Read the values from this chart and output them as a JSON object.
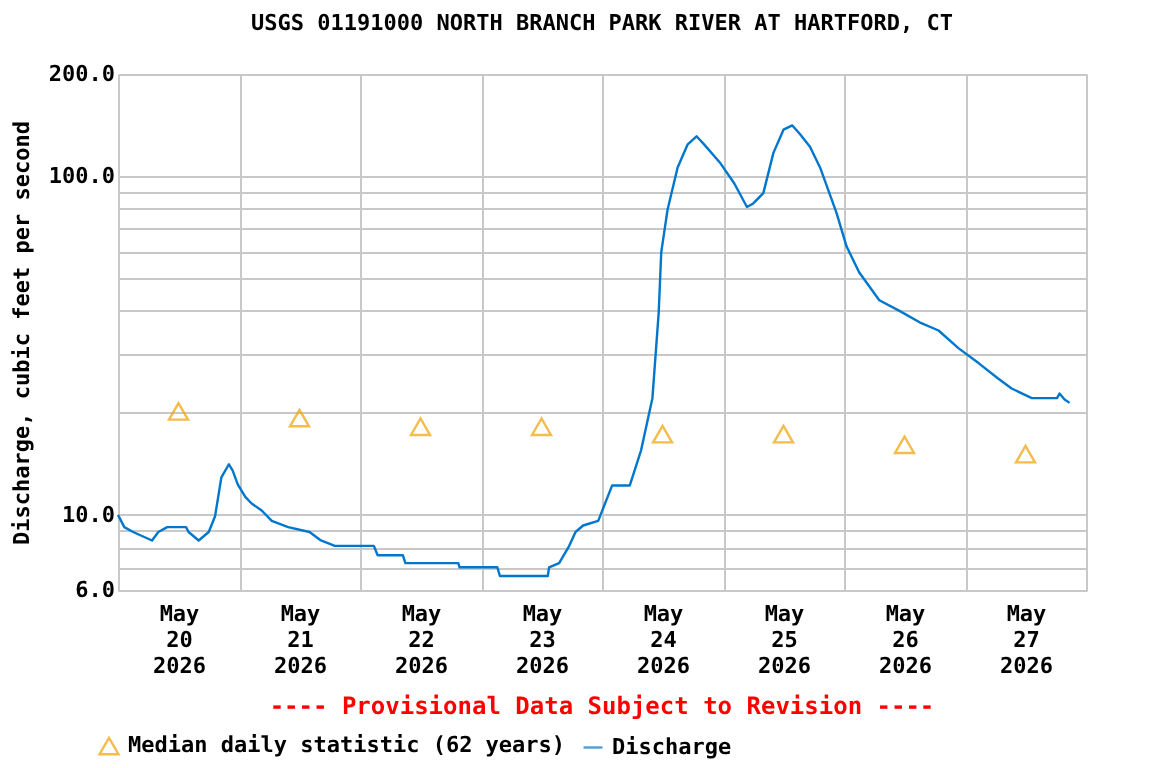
{
  "chart_data": {
    "type": "line",
    "title": "USGS 01191000 NORTH BRANCH PARK RIVER AT HARTFORD, CT",
    "ylabel": "Discharge, cubic feet per second",
    "annotations": [
      "---- Provisional Data Subject to Revision ----"
    ],
    "log": "y",
    "grid": true,
    "legend": "bottom",
    "xlim": [
      "2026-05-20T00:00",
      "2026-05-28T00:00"
    ],
    "xticks": [
      {
        "value": "2026-05-20T12:00",
        "label": "May 20 2026"
      },
      {
        "value": "2026-05-21T12:00",
        "label": "May 21 2026"
      },
      {
        "value": "2026-05-22T12:00",
        "label": "May 22 2026"
      },
      {
        "value": "2026-05-23T12:00",
        "label": "May 23 2026"
      },
      {
        "value": "2026-05-24T12:00",
        "label": "May 24 2026"
      },
      {
        "value": "2026-05-25T12:00",
        "label": "May 25 2026"
      },
      {
        "value": "2026-05-26T12:00",
        "label": "May 26 2026"
      },
      {
        "value": "2026-05-27T12:00",
        "label": "May 27 2026"
      },
      {
        "value": "2026-05-21T00:00",
        "label": null
      },
      {
        "value": "2026-05-22T00:00",
        "label": null
      },
      {
        "value": "2026-05-23T00:00",
        "label": null
      },
      {
        "value": "2026-05-24T00:00",
        "label": null
      },
      {
        "value": "2026-05-25T00:00",
        "label": null
      },
      {
        "value": "2026-05-26T00:00",
        "label": null
      },
      {
        "value": "2026-05-27T00:00",
        "label": null
      }
    ],
    "ylim": [
      6,
      200
    ],
    "yticks": [
      {
        "value": 6,
        "label": "6.0"
      },
      {
        "value": 7,
        "label": null
      },
      {
        "value": 8,
        "label": null
      },
      {
        "value": 9,
        "label": null
      },
      {
        "value": 10,
        "label": "10.0"
      },
      {
        "value": 20,
        "label": null
      },
      {
        "value": 30,
        "label": null
      },
      {
        "value": 40,
        "label": null
      },
      {
        "value": 50,
        "label": null
      },
      {
        "value": 60,
        "label": null
      },
      {
        "value": 70,
        "label": null
      },
      {
        "value": 80,
        "label": null
      },
      {
        "value": 90,
        "label": null
      },
      {
        "value": 100,
        "label": "100.0"
      },
      {
        "value": 200,
        "label": "200.0"
      }
    ],
    "series": [
      {
        "name": "Median daily statistic (62 years)",
        "type": "scatter",
        "marker": "triangle",
        "color": "#f0a000",
        "x": [
          "2026-05-20T12:00",
          "2026-05-21T12:00",
          "2026-05-22T12:00",
          "2026-05-23T12:00",
          "2026-05-24T12:00",
          "2026-05-25T12:00",
          "2026-05-26T12:00",
          "2026-05-27T12:00"
        ],
        "values": [
          20.2,
          19.3,
          18.2,
          18.2,
          17.3,
          17.3,
          16.1,
          15.1
        ]
      },
      {
        "name": "Discharge",
        "type": "line",
        "marker": "none",
        "line_style": "solid",
        "color": "#0077cc",
        "x": [
          "2026-05-20T00:00",
          "2026-05-20T01:15",
          "2026-05-20T03:00",
          "2026-05-20T06:45",
          "2026-05-20T08:00",
          "2026-05-20T09:45",
          "2026-05-20T13:30",
          "2026-05-20T14:00",
          "2026-05-20T16:00",
          "2026-05-20T18:00",
          "2026-05-20T19:15",
          "2026-05-20T20:30",
          "2026-05-20T22:00",
          "2026-05-20T22:45",
          "2026-05-20T23:45",
          "2026-05-21T01:15",
          "2026-05-21T02:30",
          "2026-05-21T04:30",
          "2026-05-21T06:30",
          "2026-05-21T09:45",
          "2026-05-21T14:00",
          "2026-05-21T16:15",
          "2026-05-21T19:00",
          "2026-05-22T02:45",
          "2026-05-22T03:30",
          "2026-05-22T08:30",
          "2026-05-22T09:00",
          "2026-05-22T19:30",
          "2026-05-22T19:45",
          "2026-05-23T03:15",
          "2026-05-23T03:45",
          "2026-05-23T13:15",
          "2026-05-23T13:30",
          "2026-05-23T15:30",
          "2026-05-23T17:30",
          "2026-05-23T18:45",
          "2026-05-23T20:15",
          "2026-05-23T23:15",
          "2026-05-24T02:00",
          "2026-05-24T05:30",
          "2026-05-24T07:45",
          "2026-05-24T10:00",
          "2026-05-24T11:15",
          "2026-05-24T11:45",
          "2026-05-24T13:00",
          "2026-05-24T15:00",
          "2026-05-24T17:00",
          "2026-05-24T18:45",
          "2026-05-24T20:15",
          "2026-05-24T23:30",
          "2026-05-25T02:15",
          "2026-05-25T04:45",
          "2026-05-25T06:00",
          "2026-05-25T08:00",
          "2026-05-25T10:00",
          "2026-05-25T12:00",
          "2026-05-25T13:45",
          "2026-05-25T15:15",
          "2026-05-25T17:15",
          "2026-05-25T19:15",
          "2026-05-25T22:30",
          "2026-05-26T00:30",
          "2026-05-26T03:00",
          "2026-05-26T07:00",
          "2026-05-26T11:00",
          "2026-05-26T15:00",
          "2026-05-26T18:45",
          "2026-05-26T22:45",
          "2026-05-27T02:45",
          "2026-05-27T06:30",
          "2026-05-27T09:15",
          "2026-05-27T13:15",
          "2026-05-27T18:15",
          "2026-05-27T18:45",
          "2026-05-27T19:45",
          "2026-05-27T20:45"
        ],
        "values": [
          10,
          9.2,
          8.9,
          8.4,
          8.9,
          9.2,
          9.2,
          8.9,
          8.4,
          8.9,
          9.9,
          12.9,
          14.1,
          13.5,
          12.3,
          11.3,
          10.8,
          10.3,
          9.6,
          9.2,
          8.9,
          8.4,
          8.1,
          8.1,
          7.6,
          7.6,
          7.2,
          7.2,
          7.0,
          7.0,
          6.6,
          6.6,
          7.0,
          7.2,
          8.1,
          8.9,
          9.3,
          9.6,
          12.2,
          12.2,
          15.5,
          22.1,
          39.6,
          59.5,
          79.5,
          106,
          124,
          131,
          124,
          109,
          95,
          81,
          83,
          89,
          117,
          137,
          141,
          133,
          122,
          106,
          78,
          62,
          52,
          43,
          40,
          37,
          35,
          31,
          28,
          25.3,
          23.6,
          22.1,
          22.1,
          22.8,
          21.9,
          21.4
        ]
      }
    ]
  }
}
